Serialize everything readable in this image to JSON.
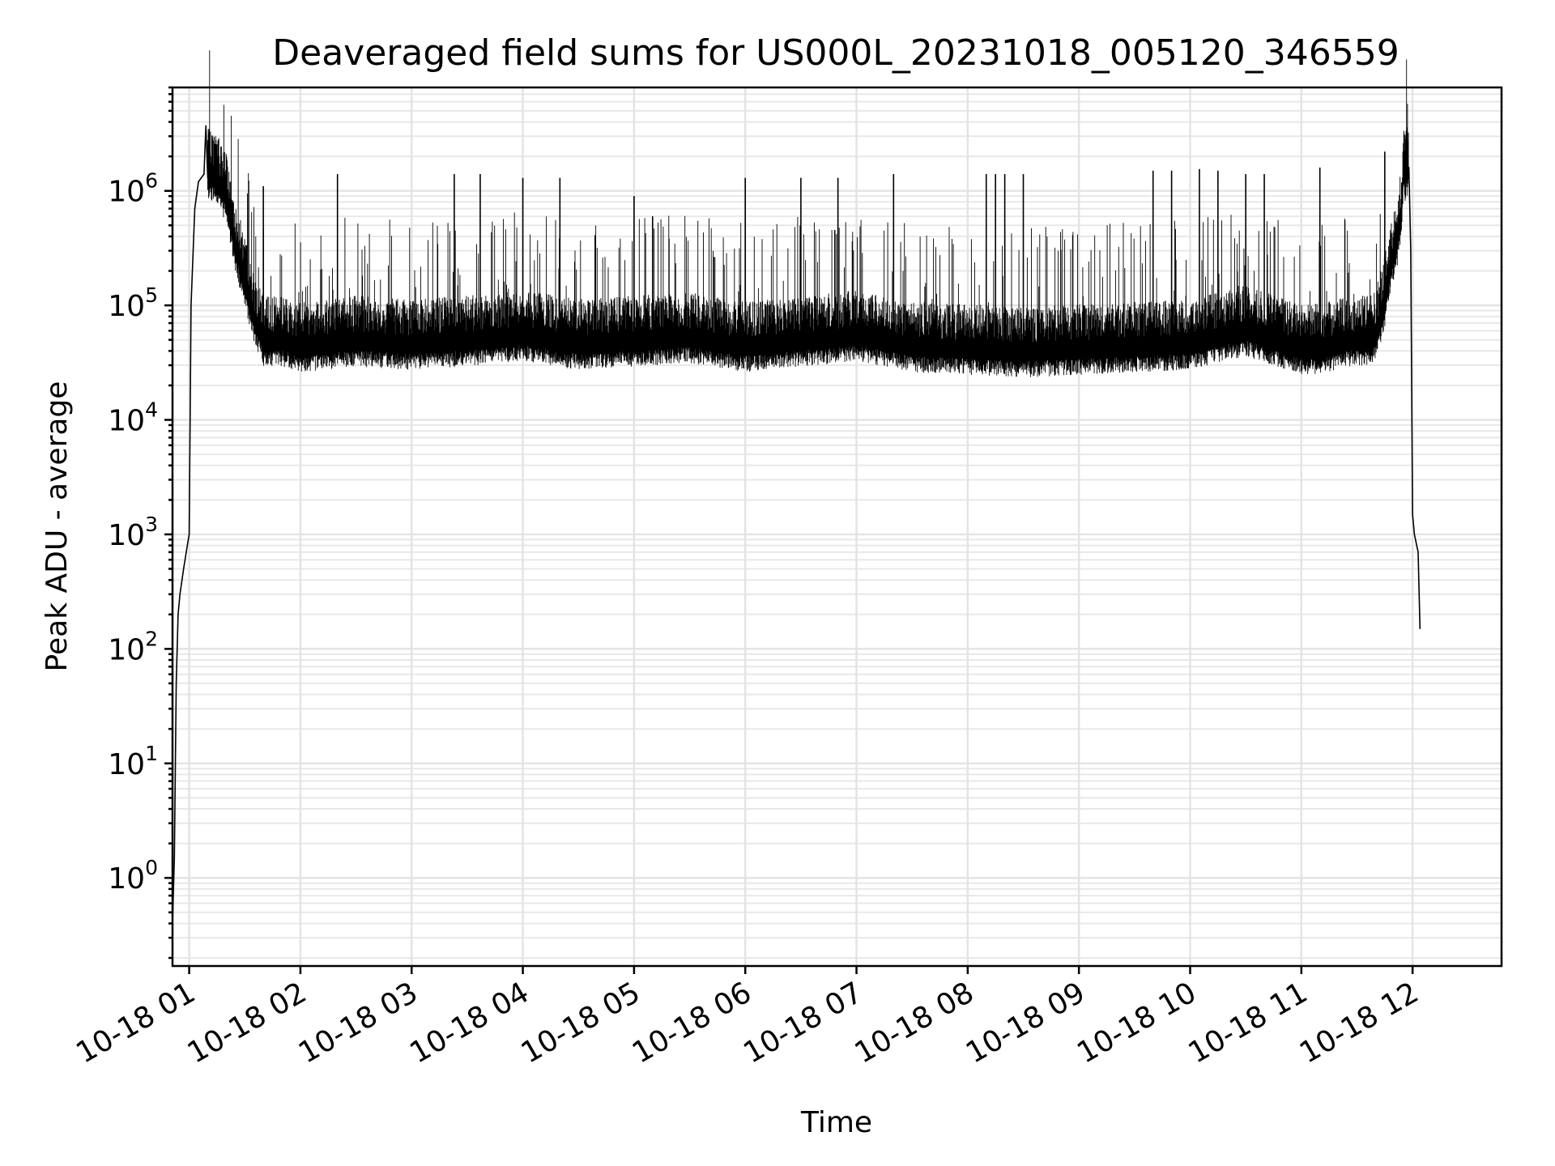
{
  "chart_data": {
    "type": "line",
    "title": "Deaveraged field sums for US000L_20231018_005120_346559",
    "xlabel": "Time",
    "ylabel": "Peak ADU - average",
    "yscale": "log",
    "ylim": [
      0.17,
      8000000
    ],
    "xlim": [
      "2023-10-18 00:51",
      "2023-10-18 12:48"
    ],
    "grid": true,
    "x_ticks": [
      "2023-10-18 01:00",
      "2023-10-18 02:00",
      "2023-10-18 03:00",
      "2023-10-18 04:00",
      "2023-10-18 05:00",
      "2023-10-18 06:00",
      "2023-10-18 07:00",
      "2023-10-18 08:00",
      "2023-10-18 09:00",
      "2023-10-18 10:00",
      "2023-10-18 11:00",
      "2023-10-18 12:00"
    ],
    "x_tick_labels": [
      "10-18 01",
      "10-18 02",
      "10-18 03",
      "10-18 04",
      "10-18 05",
      "10-18 06",
      "10-18 07",
      "10-18 08",
      "10-18 09",
      "10-18 10",
      "10-18 11",
      "10-18 12"
    ],
    "y_ticks": [
      1,
      10,
      100,
      1000,
      10000,
      100000,
      1000000
    ],
    "y_tick_labels": [
      {
        "base": "10",
        "exp": "0"
      },
      {
        "base": "10",
        "exp": "1"
      },
      {
        "base": "10",
        "exp": "2"
      },
      {
        "base": "10",
        "exp": "3"
      },
      {
        "base": "10",
        "exp": "4"
      },
      {
        "base": "10",
        "exp": "5"
      },
      {
        "base": "10",
        "exp": "6"
      }
    ],
    "series": [
      {
        "color": "#000000",
        "x": [
          "2023-10-18 00:51",
          "2023-10-18 00:52",
          "2023-10-18 00:53",
          "2023-10-18 00:54",
          "2023-10-18 00:55",
          "2023-10-18 00:57",
          "2023-10-18 00:59",
          "2023-10-18 01:00",
          "2023-10-18 01:01",
          "2023-10-18 01:03",
          "2023-10-18 01:05",
          "2023-10-18 01:08",
          "2023-10-18 01:09",
          "2023-10-18 01:10",
          "2023-10-18 01:15",
          "2023-10-18 01:20",
          "2023-10-18 01:25",
          "2023-10-18 01:30",
          "2023-10-18 01:35",
          "2023-10-18 01:40",
          "2023-10-18 01:50",
          "2023-10-18 02:00",
          "2023-10-18 02:30",
          "2023-10-18 03:00",
          "2023-10-18 03:30",
          "2023-10-18 04:00",
          "2023-10-18 04:30",
          "2023-10-18 05:00",
          "2023-10-18 05:30",
          "2023-10-18 06:00",
          "2023-10-18 06:30",
          "2023-10-18 07:00",
          "2023-10-18 07:30",
          "2023-10-18 08:00",
          "2023-10-18 08:30",
          "2023-10-18 09:00",
          "2023-10-18 09:30",
          "2023-10-18 10:00",
          "2023-10-18 10:30",
          "2023-10-18 11:00",
          "2023-10-18 11:05",
          "2023-10-18 11:15",
          "2023-10-18 11:25",
          "2023-10-18 11:35",
          "2023-10-18 11:40",
          "2023-10-18 11:45",
          "2023-10-18 11:48",
          "2023-10-18 11:52",
          "2023-10-18 11:54",
          "2023-10-18 11:55",
          "2023-10-18 11:56",
          "2023-10-18 11:58",
          "2023-10-18 11:59",
          "2023-10-18 12:00",
          "2023-10-18 12:01",
          "2023-10-18 12:03",
          "2023-10-18 12:04"
        ],
        "y": [
          0.4,
          1.5,
          50,
          200,
          300,
          500,
          800,
          1000,
          100000,
          700000,
          1200000,
          1400000,
          3700000,
          1300000,
          1200000,
          800000,
          300000,
          150000,
          70000,
          45000,
          45000,
          40000,
          45000,
          42000,
          45000,
          50000,
          42000,
          45000,
          48000,
          40000,
          45000,
          50000,
          40000,
          38000,
          36000,
          38000,
          40000,
          42000,
          55000,
          38000,
          38000,
          40000,
          45000,
          45000,
          50000,
          100000,
          200000,
          350000,
          600000,
          1400000,
          1200000,
          1600000,
          300000,
          1500,
          1000,
          700,
          150
        ]
      }
    ],
    "spikes": {
      "x": [
        "2023-10-18 01:20",
        "2023-10-18 01:40",
        "2023-10-18 02:20",
        "2023-10-18 03:23",
        "2023-10-18 03:37",
        "2023-10-18 04:00",
        "2023-10-18 04:20",
        "2023-10-18 05:00",
        "2023-10-18 05:10",
        "2023-10-18 06:00",
        "2023-10-18 06:30",
        "2023-10-18 06:50",
        "2023-10-18 07:20",
        "2023-10-18 08:10",
        "2023-10-18 08:15",
        "2023-10-18 08:20",
        "2023-10-18 08:30",
        "2023-10-18 09:40",
        "2023-10-18 09:50",
        "2023-10-18 10:05",
        "2023-10-18 10:15",
        "2023-10-18 10:30",
        "2023-10-18 10:40",
        "2023-10-18 11:10",
        "2023-10-18 11:45"
      ],
      "y": [
        1300000,
        1100000,
        1400000,
        1400000,
        1400000,
        1300000,
        1300000,
        900000,
        600000,
        1300000,
        1300000,
        1300000,
        1400000,
        1400000,
        1400000,
        1400000,
        1400000,
        1500000,
        1500000,
        1550000,
        1500000,
        1400000,
        1400000,
        1600000,
        2200000
      ]
    }
  }
}
